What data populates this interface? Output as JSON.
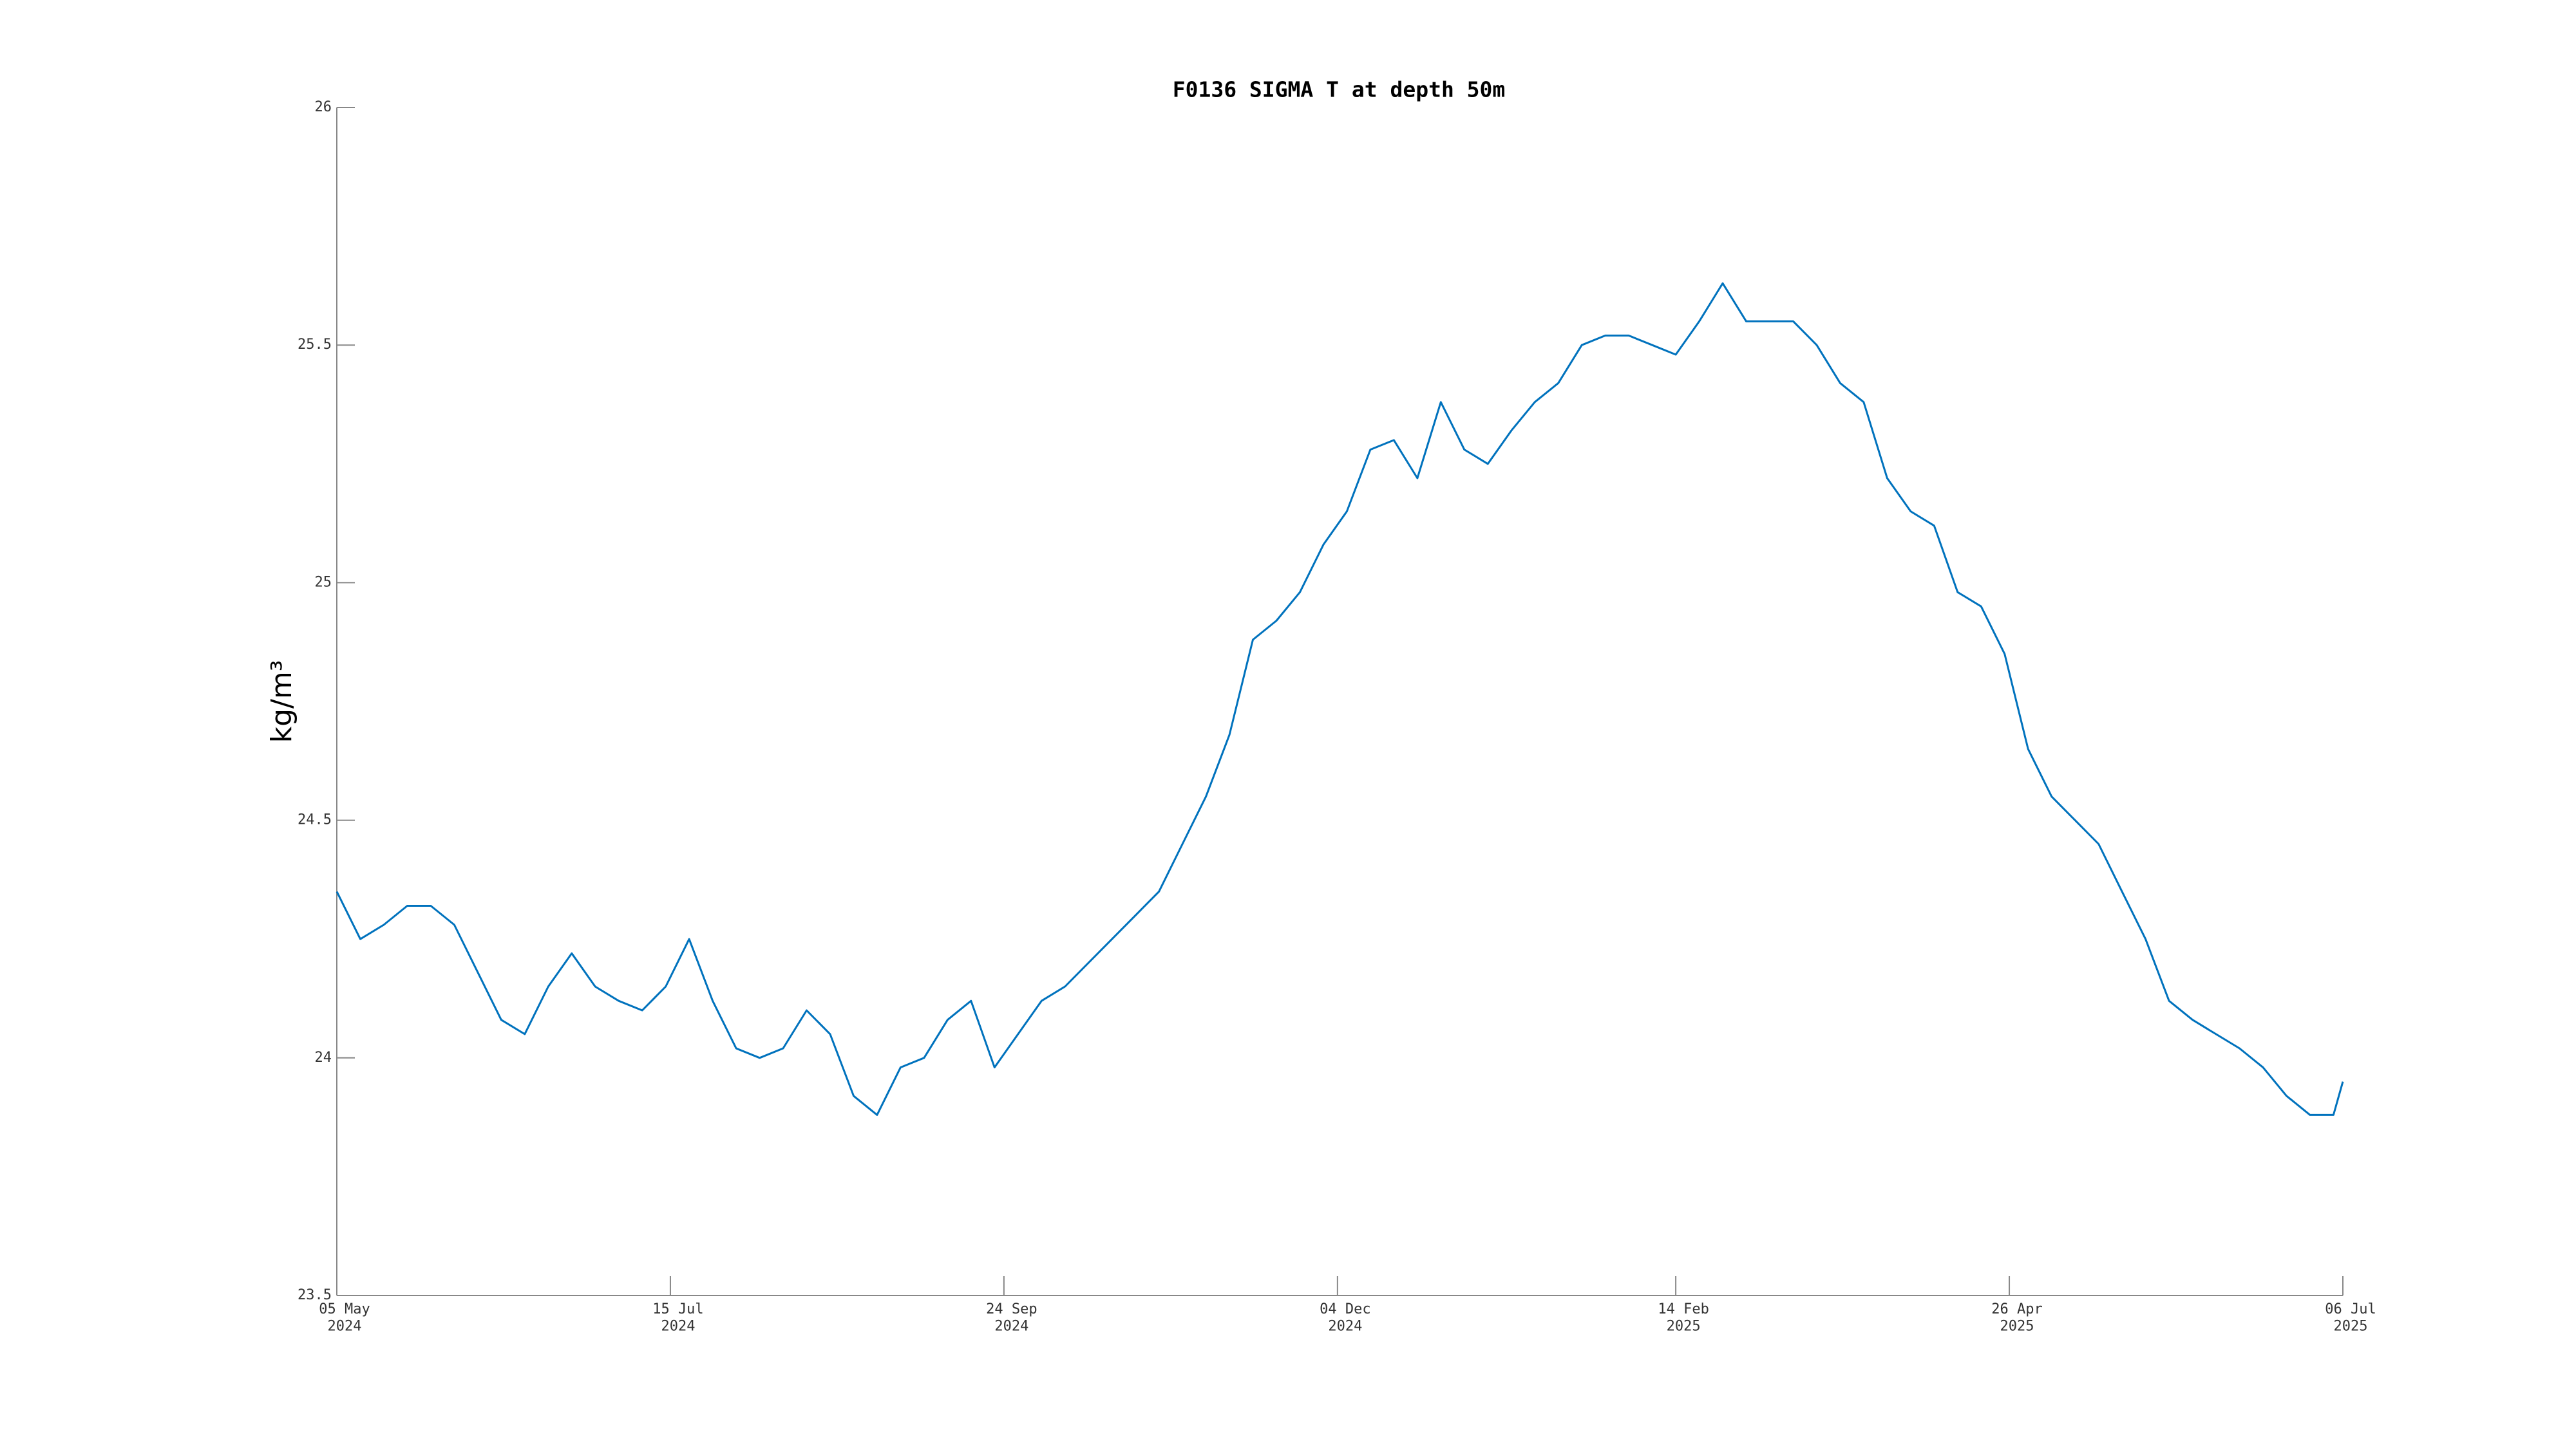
{
  "chart_data": {
    "type": "line",
    "title": "F0136 SIGMA T at depth 50m",
    "y_label": "kg/m³",
    "color": "#0072bd",
    "x": [
      "2024-05-05",
      "2024-05-10",
      "2024-05-15",
      "2024-05-20",
      "2024-05-25",
      "2024-05-30",
      "2024-06-04",
      "2024-06-09",
      "2024-06-14",
      "2024-06-19",
      "2024-06-24",
      "2024-06-29",
      "2024-07-04",
      "2024-07-09",
      "2024-07-14",
      "2024-07-19",
      "2024-07-24",
      "2024-07-29",
      "2024-08-03",
      "2024-08-08",
      "2024-08-13",
      "2024-08-18",
      "2024-08-23",
      "2024-08-28",
      "2024-09-02",
      "2024-09-07",
      "2024-09-12",
      "2024-09-17",
      "2024-09-22",
      "2024-09-27",
      "2024-10-02",
      "2024-10-07",
      "2024-10-12",
      "2024-10-17",
      "2024-10-22",
      "2024-10-27",
      "2024-11-01",
      "2024-11-06",
      "2024-11-11",
      "2024-11-16",
      "2024-11-21",
      "2024-11-26",
      "2024-12-01",
      "2024-12-06",
      "2024-12-11",
      "2024-12-16",
      "2024-12-21",
      "2024-12-26",
      "2024-12-31",
      "2025-01-05",
      "2025-01-10",
      "2025-01-15",
      "2025-01-20",
      "2025-01-25",
      "2025-01-30",
      "2025-02-04",
      "2025-02-09",
      "2025-02-14",
      "2025-02-19",
      "2025-02-24",
      "2025-03-01",
      "2025-03-06",
      "2025-03-11",
      "2025-03-16",
      "2025-03-21",
      "2025-03-26",
      "2025-03-31",
      "2025-04-05",
      "2025-04-10",
      "2025-04-15",
      "2025-04-20",
      "2025-04-25",
      "2025-04-30",
      "2025-05-05",
      "2025-05-10",
      "2025-05-15",
      "2025-05-20",
      "2025-05-25",
      "2025-05-30",
      "2025-06-04",
      "2025-06-09",
      "2025-06-14",
      "2025-06-19",
      "2025-06-24",
      "2025-06-29",
      "2025-07-04",
      "2025-07-06"
    ],
    "values": [
      24.35,
      24.25,
      24.28,
      24.32,
      24.32,
      24.28,
      24.18,
      24.08,
      24.05,
      24.15,
      24.22,
      24.15,
      24.12,
      24.1,
      24.15,
      24.25,
      24.12,
      24.02,
      24.0,
      24.02,
      24.1,
      24.05,
      23.92,
      23.88,
      23.98,
      24.0,
      24.08,
      24.12,
      23.98,
      24.05,
      24.12,
      24.15,
      24.2,
      24.25,
      24.3,
      24.35,
      24.45,
      24.55,
      24.68,
      24.88,
      24.92,
      24.98,
      25.08,
      25.15,
      25.28,
      25.3,
      25.22,
      25.38,
      25.28,
      25.25,
      25.32,
      25.38,
      25.42,
      25.5,
      25.52,
      25.52,
      25.5,
      25.48,
      25.55,
      25.63,
      25.55,
      25.55,
      25.55,
      25.5,
      25.42,
      25.38,
      25.22,
      25.15,
      25.12,
      24.98,
      24.95,
      24.85,
      24.65,
      24.55,
      24.5,
      24.45,
      24.35,
      24.25,
      24.12,
      24.08,
      24.05,
      24.02,
      23.98,
      23.92,
      23.88,
      23.88,
      23.95
    ],
    "xlim": [
      "2024-05-05",
      "2025-07-06"
    ],
    "xticks": [
      {
        "value": "2024-05-05",
        "label": "05 May\n2024"
      },
      {
        "value": "2024-07-15",
        "label": "15 Jul\n2024"
      },
      {
        "value": "2024-09-24",
        "label": "24 Sep\n2024"
      },
      {
        "value": "2024-12-04",
        "label": "04 Dec\n2024"
      },
      {
        "value": "2025-02-14",
        "label": "14 Feb\n2025"
      },
      {
        "value": "2025-04-26",
        "label": "26 Apr\n2025"
      },
      {
        "value": "2025-07-06",
        "label": "06 Jul\n2025"
      }
    ],
    "ylim": [
      23.5,
      26
    ],
    "yticks": [
      23.5,
      24,
      24.5,
      25,
      25.5,
      26
    ],
    "grid": false
  }
}
